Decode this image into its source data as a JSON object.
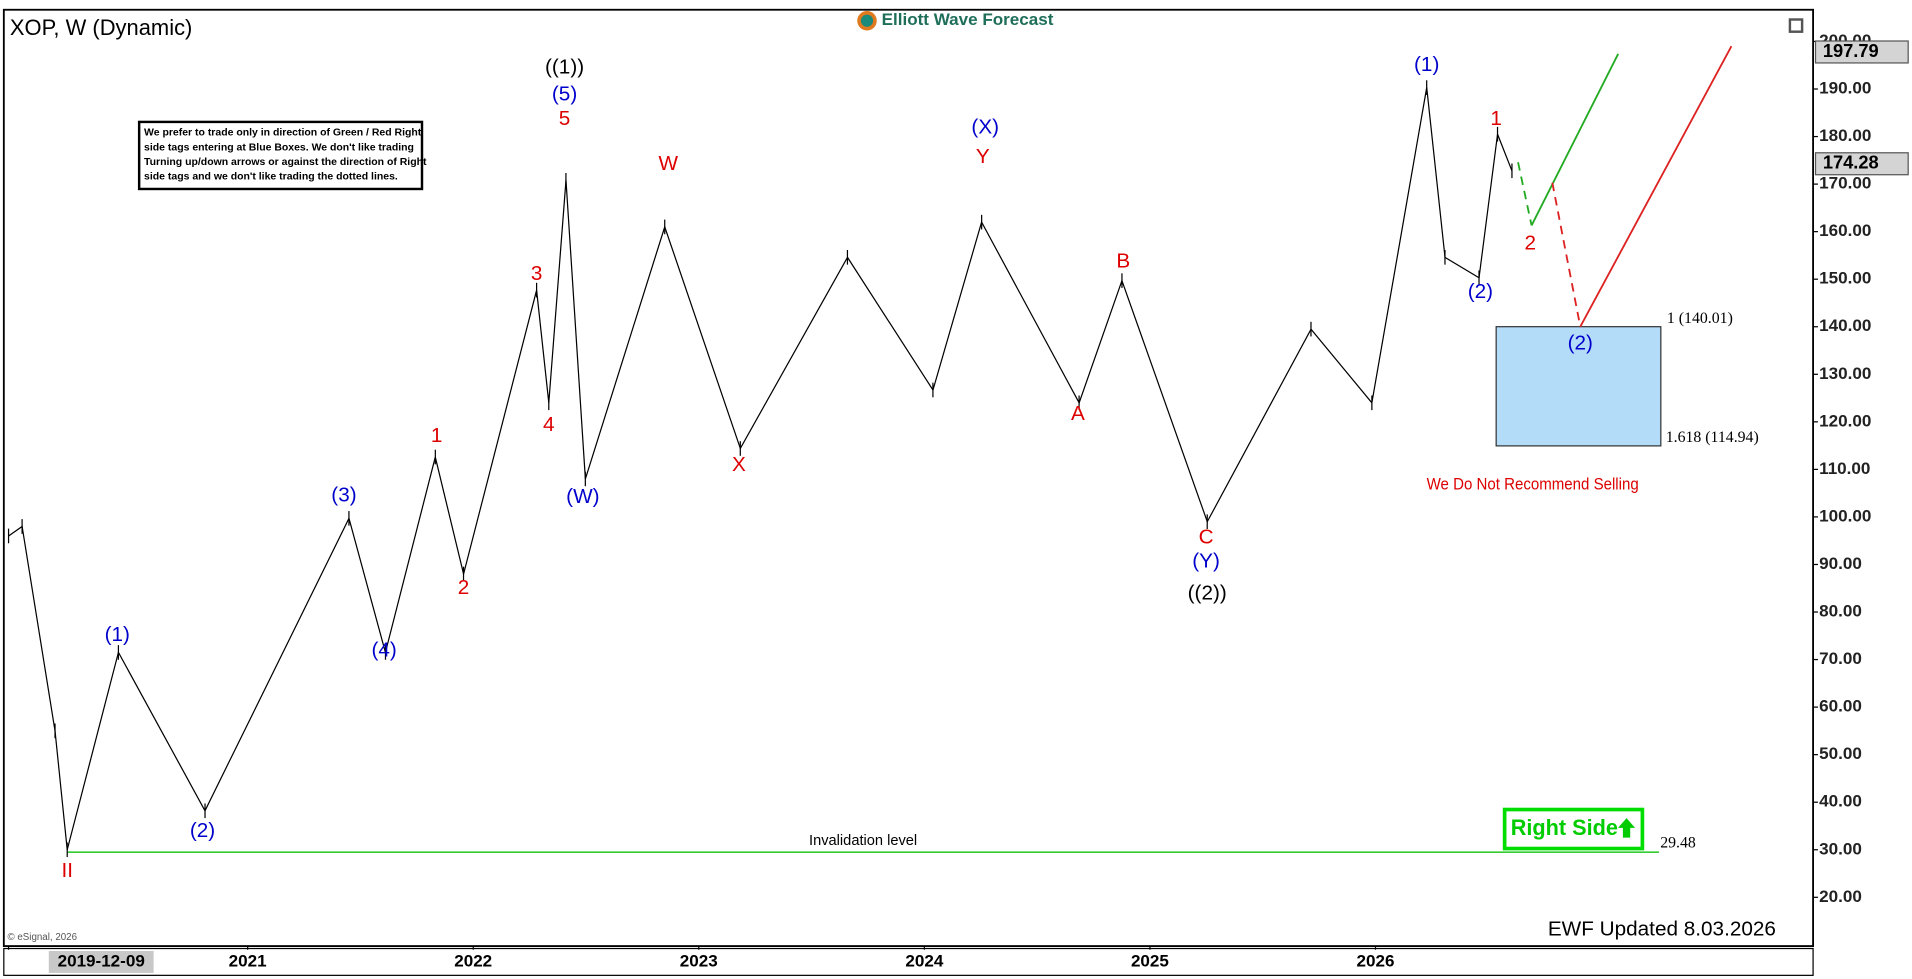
{
  "chart_data": {
    "type": "line",
    "title": "XOP, W (Dynamic)",
    "logo": "Elliott Wave Forecast",
    "note": [
      "We prefer to trade only in direction of Green / Red Right",
      "side tags entering at Blue Boxes. We don't like trading",
      "Turning up/down arrows or against the direction of Right",
      "side tags and we don't like trading the dotted lines."
    ],
    "xlim": [
      2019.919,
      2027.94
    ],
    "ylim": [
      9.74,
      206.67
    ],
    "xticks": [
      {
        "value": 2019.94,
        "label": "2019-12-09"
      },
      2021,
      2022,
      2023,
      2024,
      2025,
      2026
    ],
    "yticks": [
      {
        "value": 20,
        "label": "20.00"
      },
      {
        "value": 30,
        "label": "30.00"
      },
      {
        "value": 40,
        "label": "40.00"
      },
      {
        "value": 50,
        "label": "50.00"
      },
      {
        "value": 60,
        "label": "60.00"
      },
      {
        "value": 70,
        "label": "70.00"
      },
      {
        "value": 80,
        "label": "80.00"
      },
      {
        "value": 90,
        "label": "90.00"
      },
      {
        "value": 100,
        "label": "100.00"
      },
      {
        "value": 110,
        "label": "110.00"
      },
      {
        "value": 120,
        "label": "120.00"
      },
      {
        "value": 130,
        "label": "130.00"
      },
      {
        "value": 140,
        "label": "140.00"
      },
      {
        "value": 150,
        "label": "150.00"
      },
      {
        "value": 160,
        "label": "160.00"
      },
      {
        "value": 170,
        "label": "170.00"
      },
      {
        "value": 180,
        "label": "180.00"
      },
      {
        "value": 190,
        "label": "190.00"
      },
      {
        "value": 200,
        "label": "200.00"
      }
    ],
    "series": [
      {
        "color": "#000000",
        "x": [
          2019.94,
          2020.0,
          2020.146,
          2020.2,
          2020.427,
          2020.811,
          2021.449,
          2021.611,
          2021.832,
          2021.957,
          2022.281,
          2022.335,
          2022.411,
          2022.497,
          2022.849,
          2023.184,
          2023.659,
          2024.038,
          2024.254,
          2024.686,
          2024.876,
          2025.254,
          2025.714,
          2025.984,
          2026.227,
          2026.308,
          2026.459,
          2026.541,
          2026.605
        ],
        "values": [
          96,
          98,
          55,
          30,
          71.5,
          38.2,
          99.7,
          71.5,
          112.6,
          88,
          147.7,
          124,
          170.8,
          108,
          161,
          114.4,
          154.6,
          126.7,
          162,
          124,
          149.7,
          99,
          139.5,
          124,
          190.3,
          154.6,
          150.3,
          180.5,
          172.8
        ]
      }
    ],
    "price_tags": [
      197.79,
      174.28
    ],
    "target_box": {
      "color": "#b3dcf8",
      "x": [
        2026.535,
        2027.265
      ],
      "values": [
        140.01,
        114.94
      ],
      "labels": [
        "1 (140.01)",
        "1.618 (114.94)"
      ]
    },
    "invalidation": {
      "label": "Invalidation level",
      "value": 29.48,
      "color": "#33cc33",
      "x": [
        2020.2,
        2027.257
      ]
    },
    "projections": [
      {
        "color": "#22aa22",
        "dashed": true,
        "x": [
          2026.632,
          2026.692
        ],
        "values": [
          174.6,
          161.3
        ]
      },
      {
        "color": "#22aa22",
        "dashed": false,
        "x": [
          2026.692,
          2027.076
        ],
        "values": [
          161.3,
          197.4
        ]
      },
      {
        "color": "#dd2222",
        "dashed": true,
        "x": [
          2026.784,
          2026.908
        ],
        "values": [
          170.3,
          140
        ]
      },
      {
        "color": "#dd2222",
        "dashed": false,
        "x": [
          2026.908,
          2027.578
        ],
        "values": [
          140,
          199
        ]
      }
    ],
    "wave_labels": [
      {
        "text": "((1))",
        "color": "#000000",
        "x": 2022.405,
        "y": 194.4
      },
      {
        "text": "(5)",
        "color": "#0000cc",
        "x": 2022.405,
        "y": 188.7
      },
      {
        "text": "5",
        "color": "#dd0000",
        "x": 2022.405,
        "y": 183.6
      },
      {
        "text": "W",
        "color": "#dd0000",
        "x": 2022.865,
        "y": 174.1
      },
      {
        "text": "(X)",
        "color": "#0000cc",
        "x": 2024.27,
        "y": 181.8
      },
      {
        "text": "Y",
        "color": "#dd0000",
        "x": 2024.259,
        "y": 175.6
      },
      {
        "text": "3",
        "color": "#dd0000",
        "x": 2022.281,
        "y": 151
      },
      {
        "text": "4",
        "color": "#dd0000",
        "x": 2022.335,
        "y": 119.2
      },
      {
        "text": "1",
        "color": "#dd0000",
        "x": 2021.838,
        "y": 116.9
      },
      {
        "text": "2",
        "color": "#dd0000",
        "x": 2021.957,
        "y": 84.9
      },
      {
        "text": "(W)",
        "color": "#0000cc",
        "x": 2022.486,
        "y": 104.1
      },
      {
        "text": "X",
        "color": "#dd0000",
        "x": 2023.178,
        "y": 110.8
      },
      {
        "text": "B",
        "color": "#dd0000",
        "x": 2024.882,
        "y": 153.6
      },
      {
        "text": "A",
        "color": "#dd0000",
        "x": 2024.681,
        "y": 121.5
      },
      {
        "text": "C",
        "color": "#dd0000",
        "x": 2025.249,
        "y": 95.6
      },
      {
        "text": "(Y)",
        "color": "#0000cc",
        "x": 2025.249,
        "y": 90.5
      },
      {
        "text": "((2))",
        "color": "#000000",
        "x": 2025.254,
        "y": 83.8
      },
      {
        "text": "(1)",
        "color": "#0000cc",
        "x": 2020.422,
        "y": 75.1
      },
      {
        "text": "(2)",
        "color": "#0000cc",
        "x": 2020.8,
        "y": 33.8
      },
      {
        "text": "(3)",
        "color": "#0000cc",
        "x": 2021.427,
        "y": 104.4
      },
      {
        "text": "(4)",
        "color": "#0000cc",
        "x": 2021.605,
        "y": 71.8
      },
      {
        "text": "(1)",
        "color": "#0000cc",
        "x": 2026.227,
        "y": 194.9
      },
      {
        "text": "1",
        "color": "#dd0000",
        "x": 2026.535,
        "y": 183.6
      },
      {
        "text": "2",
        "color": "#dd0000",
        "x": 2026.686,
        "y": 157.4
      },
      {
        "text": "(2)",
        "color": "#0000cc",
        "x": 2026.465,
        "y": 147.2
      },
      {
        "text": "(2)",
        "color": "#0000cc",
        "x": 2026.908,
        "y": 136.4
      },
      {
        "text": "II",
        "color": "#dd0000",
        "x": 2020.2,
        "y": 25.4
      }
    ],
    "warning": "We Do Not Recommend Selling",
    "right_side": "Right Side",
    "updated": "EWF Updated 8.03.2026",
    "source": "© eSignal, 2026"
  }
}
